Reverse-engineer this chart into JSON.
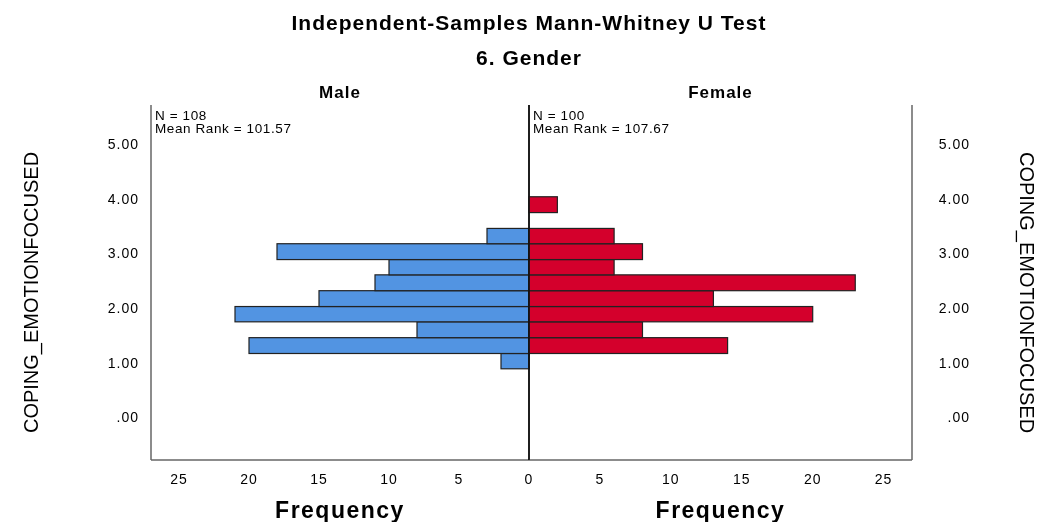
{
  "chart_data": [
    {
      "type": "histogram",
      "title": "Independent-Samples Mann-Whitney U Test",
      "subtitle": "6. Gender",
      "orientation": "horizontal",
      "bins": [
        0.89,
        1.17,
        1.46,
        1.75,
        2.03,
        2.32,
        2.61,
        2.89,
        3.18,
        3.46
      ],
      "series": [
        {
          "name": "Male",
          "color": "#5294e2",
          "values": [
            2,
            20,
            8,
            21,
            15,
            11,
            10,
            18,
            3
          ]
        }
      ],
      "xlim": [
        27,
        0
      ],
      "xticks": [
        25,
        20,
        15,
        10,
        5,
        0
      ],
      "ylim": [
        -0.78,
        5.72
      ],
      "yticks": [
        {
          "value": 0,
          "label": ".00"
        },
        {
          "value": 1,
          "label": "1.00"
        },
        {
          "value": 2,
          "label": "2.00"
        },
        {
          "value": 3,
          "label": "3.00"
        },
        {
          "value": 4,
          "label": "4.00"
        },
        {
          "value": 5,
          "label": "5.00"
        }
      ],
      "xlabel": "Frequency",
      "ylabel": "COPING_EMOTIONFOCUSED",
      "annotations": [
        "N = 108",
        "Mean Rank = 101.57"
      ]
    },
    {
      "type": "histogram",
      "orientation": "horizontal",
      "bins": [
        1.17,
        1.46,
        1.75,
        2.03,
        2.32,
        2.61,
        2.89,
        3.18,
        3.46,
        3.75,
        4.04
      ],
      "series": [
        {
          "name": "Female",
          "color": "#d4002c",
          "values": [
            14,
            8,
            20,
            13,
            23,
            6,
            8,
            6,
            0,
            2
          ]
        }
      ],
      "xlim": [
        0,
        27
      ],
      "xticks": [
        5,
        10,
        15,
        20,
        25
      ],
      "ylim": [
        -0.78,
        5.72
      ],
      "yticks": [
        {
          "value": 0,
          "label": ".00"
        },
        {
          "value": 1,
          "label": "1.00"
        },
        {
          "value": 2,
          "label": "2.00"
        },
        {
          "value": 3,
          "label": "3.00"
        },
        {
          "value": 4,
          "label": "4.00"
        },
        {
          "value": 5,
          "label": "5.00"
        }
      ],
      "xlabel": "Frequency",
      "ylabel": "COPING_EMOTIONFOCUSED",
      "annotations": [
        "N = 100",
        "Mean Rank = 107.67"
      ]
    }
  ]
}
